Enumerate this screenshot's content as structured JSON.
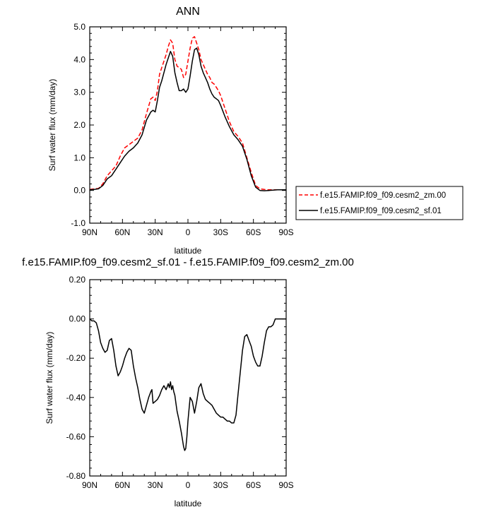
{
  "chart_data": [
    {
      "type": "line",
      "title": "ANN",
      "xlabel": "latitude",
      "ylabel": "Surf water flux (mm/day)",
      "x_range": [
        90,
        -90
      ],
      "x_ticks": [
        90,
        60,
        30,
        0,
        -30,
        -60,
        -90
      ],
      "x_tick_labels": [
        "90N",
        "60N",
        "30N",
        "0",
        "30S",
        "60S",
        "90S"
      ],
      "ylim": [
        -1.0,
        5.0
      ],
      "y_ticks": [
        -1.0,
        0.0,
        1.0,
        2.0,
        3.0,
        4.0,
        5.0
      ],
      "y_tick_labels": [
        "-1.0",
        "0.0",
        "1.0",
        "2.0",
        "3.0",
        "4.0",
        "5.0"
      ],
      "grid": false,
      "legend_position": "right",
      "series": [
        {
          "name": "f.e15.FAMIP.f09_f09.cesm2_zm.00",
          "color": "#ff0000",
          "dash": "dashed",
          "x": [
            90,
            86,
            82,
            78,
            74,
            70,
            66,
            62,
            58,
            54,
            50,
            46,
            42,
            38,
            34,
            32,
            30,
            28,
            26,
            24,
            22,
            20,
            18,
            16,
            14,
            12,
            10,
            8,
            6,
            4,
            2,
            0,
            -2,
            -4,
            -6,
            -8,
            -10,
            -12,
            -14,
            -16,
            -18,
            -20,
            -22,
            -24,
            -26,
            -28,
            -30,
            -34,
            -38,
            -42,
            -46,
            -50,
            -54,
            -58,
            -62,
            -66,
            -70,
            -74,
            -78,
            -82,
            -86,
            -90
          ],
          "y": [
            0.03,
            0.05,
            0.06,
            0.2,
            0.45,
            0.6,
            0.75,
            1.05,
            1.3,
            1.4,
            1.5,
            1.6,
            1.85,
            2.35,
            2.8,
            2.85,
            2.75,
            3.05,
            3.55,
            3.75,
            3.95,
            4.15,
            4.4,
            4.6,
            4.5,
            4.0,
            3.8,
            3.75,
            3.7,
            3.45,
            3.55,
            3.95,
            4.35,
            4.65,
            4.7,
            4.5,
            4.3,
            4.0,
            3.85,
            3.7,
            3.55,
            3.45,
            3.3,
            3.25,
            3.15,
            3.05,
            2.9,
            2.5,
            2.1,
            1.8,
            1.65,
            1.45,
            1.0,
            0.55,
            0.15,
            0.05,
            0.03,
            0.02,
            0.02,
            0.02,
            0.02,
            0.02
          ]
        },
        {
          "name": "f.e15.FAMIP.f09_f09.cesm2_sf.01",
          "color": "#000000",
          "dash": "solid",
          "x": [
            90,
            86,
            82,
            78,
            74,
            70,
            66,
            62,
            58,
            54,
            50,
            46,
            42,
            38,
            34,
            32,
            30,
            28,
            26,
            24,
            22,
            20,
            18,
            16,
            14,
            12,
            10,
            8,
            6,
            4,
            2,
            0,
            -2,
            -4,
            -6,
            -8,
            -10,
            -12,
            -14,
            -16,
            -18,
            -20,
            -22,
            -24,
            -26,
            -28,
            -30,
            -34,
            -38,
            -42,
            -46,
            -50,
            -54,
            -58,
            -62,
            -66,
            -70,
            -74,
            -78,
            -82,
            -86,
            -90
          ],
          "y": [
            0.02,
            0.03,
            0.05,
            0.15,
            0.35,
            0.45,
            0.65,
            0.85,
            1.05,
            1.2,
            1.3,
            1.45,
            1.7,
            2.15,
            2.4,
            2.45,
            2.4,
            2.75,
            3.15,
            3.35,
            3.6,
            3.85,
            4.05,
            4.25,
            4.1,
            3.6,
            3.3,
            3.05,
            3.05,
            3.1,
            3.0,
            3.1,
            3.5,
            3.95,
            4.3,
            4.35,
            4.15,
            3.8,
            3.6,
            3.45,
            3.3,
            3.1,
            2.95,
            2.85,
            2.8,
            2.75,
            2.6,
            2.25,
            1.95,
            1.7,
            1.55,
            1.35,
            0.95,
            0.45,
            0.1,
            0.0,
            -0.01,
            0.0,
            0.01,
            0.02,
            0.02,
            0.02
          ]
        }
      ]
    },
    {
      "type": "line",
      "title": "f.e15.FAMIP.f09_f09.cesm2_sf.01 - f.e15.FAMIP.f09_f09.cesm2_zm.00",
      "xlabel": "latitude",
      "ylabel": "Surf water flux (mm/day)",
      "x_range": [
        90,
        -90
      ],
      "x_ticks": [
        90,
        60,
        30,
        0,
        -30,
        -60,
        -90
      ],
      "x_tick_labels": [
        "90N",
        "60N",
        "30N",
        "0",
        "30S",
        "60S",
        "90S"
      ],
      "ylim": [
        -0.8,
        0.2
      ],
      "y_ticks": [
        -0.8,
        -0.6,
        -0.4,
        -0.2,
        0.0,
        0.2
      ],
      "y_tick_labels": [
        "-0.80",
        "-0.60",
        "-0.40",
        "-0.20",
        "0.00",
        "0.20"
      ],
      "grid": false,
      "series": [
        {
          "color": "#000000",
          "dash": "solid",
          "x": [
            90,
            88,
            86,
            84,
            82,
            80,
            78,
            76,
            74,
            72,
            70,
            68,
            66,
            64,
            62,
            60,
            58,
            56,
            54,
            52,
            50,
            48,
            46,
            44,
            42,
            40,
            38,
            36,
            34,
            33,
            32,
            30,
            28,
            26,
            24,
            22,
            20,
            18,
            17,
            16,
            15,
            14,
            13,
            12,
            11,
            10,
            8,
            6,
            4,
            3,
            2,
            1,
            0,
            -2,
            -4,
            -6,
            -8,
            -10,
            -12,
            -14,
            -16,
            -18,
            -20,
            -22,
            -24,
            -26,
            -28,
            -30,
            -32,
            -34,
            -36,
            -38,
            -40,
            -42,
            -44,
            -46,
            -48,
            -50,
            -52,
            -54,
            -56,
            -58,
            -60,
            -62,
            -64,
            -66,
            -68,
            -70,
            -72,
            -74,
            -76,
            -78,
            -80,
            -82,
            -84,
            -86,
            -88,
            -90
          ],
          "y": [
            0.0,
            -0.01,
            -0.01,
            -0.02,
            -0.06,
            -0.12,
            -0.15,
            -0.17,
            -0.16,
            -0.11,
            -0.1,
            -0.16,
            -0.24,
            -0.29,
            -0.27,
            -0.24,
            -0.2,
            -0.17,
            -0.15,
            -0.16,
            -0.24,
            -0.3,
            -0.35,
            -0.41,
            -0.46,
            -0.48,
            -0.44,
            -0.4,
            -0.37,
            -0.36,
            -0.43,
            -0.42,
            -0.41,
            -0.39,
            -0.36,
            -0.34,
            -0.36,
            -0.33,
            -0.35,
            -0.32,
            -0.36,
            -0.34,
            -0.37,
            -0.39,
            -0.43,
            -0.47,
            -0.52,
            -0.58,
            -0.65,
            -0.67,
            -0.66,
            -0.6,
            -0.52,
            -0.4,
            -0.42,
            -0.48,
            -0.42,
            -0.35,
            -0.33,
            -0.38,
            -0.41,
            -0.42,
            -0.43,
            -0.44,
            -0.46,
            -0.48,
            -0.49,
            -0.5,
            -0.5,
            -0.51,
            -0.52,
            -0.52,
            -0.53,
            -0.53,
            -0.49,
            -0.38,
            -0.27,
            -0.16,
            -0.09,
            -0.08,
            -0.11,
            -0.14,
            -0.19,
            -0.22,
            -0.24,
            -0.24,
            -0.19,
            -0.12,
            -0.06,
            -0.04,
            -0.04,
            -0.03,
            0.0,
            0.0,
            0.0,
            0.0,
            0.0,
            0.0
          ]
        }
      ]
    }
  ]
}
